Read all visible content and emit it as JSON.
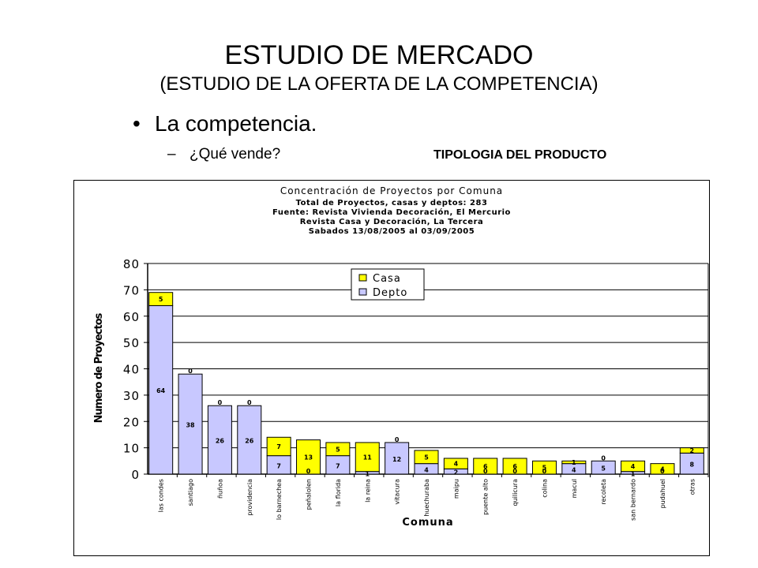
{
  "slide": {
    "title": "ESTUDIO DE MERCADO",
    "subtitle": "(ESTUDIO DE LA OFERTA DE LA COMPETENCIA)",
    "bullet": "La competencia.",
    "bullet_marker": "•",
    "sub_dash": "–",
    "sub_bullet": "¿Qué vende?",
    "sub_right": "TIPOLOGIA DEL PRODUCTO"
  },
  "chart_data": {
    "type": "bar",
    "stacked": true,
    "title_lines": [
      "Concentración de Proyectos por Comuna",
      "Total de Proyectos, casas y deptos: 283",
      "Fuente: Revista Vivienda Decoración, El Mercurio",
      "Revista Casa y Decoración, La Tercera",
      "Sabados 13/08/2005 al 03/09/2005"
    ],
    "xlabel": "Comuna",
    "ylabel": "Numero de Proyectos",
    "ylim": [
      0,
      80
    ],
    "yticks": [
      0,
      10,
      20,
      30,
      40,
      50,
      60,
      70,
      80
    ],
    "grid": true,
    "legend_position": "top-center",
    "categories": [
      "las condes",
      "santiago",
      "ñuñoa",
      "providencia",
      "lo barnechea",
      "peñalolen",
      "la florida",
      "la reina",
      "vitacura",
      "huechuraba",
      "maipu",
      "puente alto",
      "quilicura",
      "colina",
      "macul",
      "recoleta",
      "san bernardo",
      "pudahuel",
      "otras"
    ],
    "series": [
      {
        "name": "Depto",
        "color": "#c8c8ff",
        "values": [
          64,
          38,
          26,
          26,
          7,
          0,
          7,
          1,
          12,
          4,
          2,
          0,
          0,
          0,
          4,
          5,
          1,
          0,
          8
        ]
      },
      {
        "name": "Casa",
        "color": "#ffff00",
        "values": [
          5,
          0,
          0,
          0,
          7,
          13,
          5,
          11,
          0,
          5,
          4,
          6,
          6,
          5,
          1,
          0,
          4,
          4,
          2
        ]
      }
    ]
  }
}
